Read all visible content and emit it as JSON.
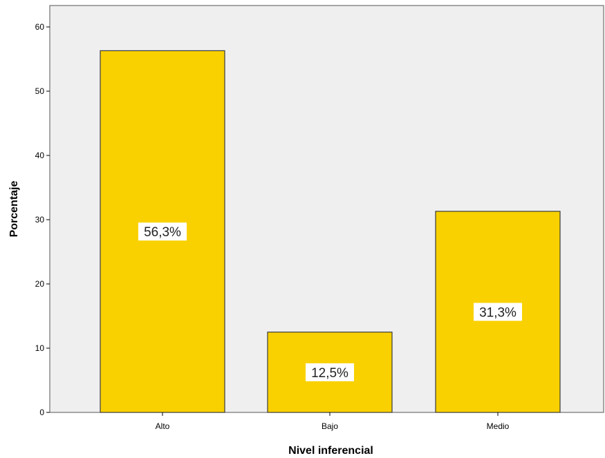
{
  "chart_data": {
    "type": "bar",
    "title": "",
    "xlabel": "Nivel inferencial",
    "ylabel": "Porcentaje",
    "categories": [
      "Alto",
      "Bajo",
      "Medio"
    ],
    "values": [
      56.3,
      12.5,
      31.3
    ],
    "data_labels": [
      "56,3%",
      "12,5%",
      "31,3%"
    ],
    "ylim": [
      0,
      62
    ],
    "yticks": [
      "0",
      "10",
      "20",
      "30",
      "40",
      "50",
      "60"
    ],
    "ytick_values": [
      0,
      10,
      20,
      30,
      40,
      50,
      60
    ],
    "grid": false,
    "legend": "none",
    "colors": {
      "bar_fill": "#F9D100",
      "bar_stroke": "#3a3a3a",
      "plot_background": "#EFEFEF",
      "label_background": "#FFFFFF"
    }
  }
}
